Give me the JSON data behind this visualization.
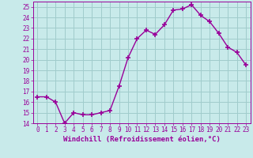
{
  "x": [
    0,
    1,
    2,
    3,
    4,
    5,
    6,
    7,
    8,
    9,
    10,
    11,
    12,
    13,
    14,
    15,
    16,
    17,
    18,
    19,
    20,
    21,
    22,
    23
  ],
  "y": [
    16.5,
    16.5,
    16.0,
    14.0,
    15.0,
    14.8,
    14.8,
    15.0,
    15.2,
    17.5,
    20.2,
    22.0,
    22.8,
    22.4,
    23.3,
    24.7,
    24.8,
    25.2,
    24.2,
    23.6,
    22.5,
    21.2,
    20.7,
    19.5
  ],
  "line_color": "#990099",
  "marker": "+",
  "markersize": 4,
  "linewidth": 1.0,
  "bg_color": "#c8eaea",
  "grid_color": "#a0cccc",
  "xlabel": "Windchill (Refroidissement éolien,°C)",
  "ylim": [
    14,
    25.5
  ],
  "xlim": [
    -0.5,
    23.5
  ],
  "yticks": [
    14,
    15,
    16,
    17,
    18,
    19,
    20,
    21,
    22,
    23,
    24,
    25
  ],
  "xticks": [
    0,
    1,
    2,
    3,
    4,
    5,
    6,
    7,
    8,
    9,
    10,
    11,
    12,
    13,
    14,
    15,
    16,
    17,
    18,
    19,
    20,
    21,
    22,
    23
  ],
  "tick_fontsize": 5.5,
  "label_fontsize": 6.5
}
